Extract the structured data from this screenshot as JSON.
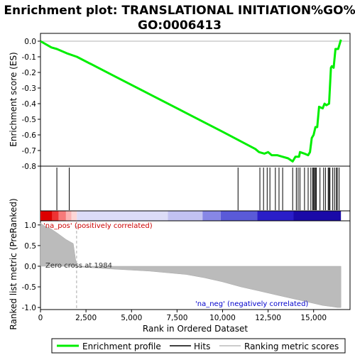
{
  "chart_data": {
    "type": "line",
    "title_line1": "Enrichment plot: TRANSLATIONAL INITIATION%GO%",
    "title_line2": "GO:0006413",
    "xlabel": "Rank in Ordered Dataset",
    "ylabel_top": "Enrichment score (ES)",
    "ylabel_bottom": "Ranked list metric (PreRanked)",
    "x_ticks": [
      0,
      2500,
      5000,
      7500,
      10000,
      12500,
      15000
    ],
    "x_tick_labels": [
      "0",
      "2,500",
      "5,000",
      "7,500",
      "10,000",
      "12,500",
      "15,000"
    ],
    "xlim": [
      0,
      17000
    ],
    "es_ylim": [
      -0.8,
      0.05
    ],
    "es_ticks": [
      0.0,
      -0.1,
      -0.2,
      -0.3,
      -0.4,
      -0.5,
      -0.6,
      -0.7,
      -0.8
    ],
    "es_tick_labels": [
      "0.0",
      "-0.1",
      "-0.2",
      "-0.3",
      "-0.4",
      "-0.5",
      "-0.6",
      "-0.7",
      "-0.8"
    ],
    "metric_ylim": [
      -1.05,
      1.1
    ],
    "metric_ticks": [
      1.0,
      0.5,
      0.0,
      -0.5,
      -1.0
    ],
    "metric_tick_labels": [
      "1.0",
      "0.5",
      "0.0",
      "-0.5",
      "-1.0"
    ],
    "es_curve": {
      "x": [
        0,
        600,
        900,
        1500,
        2000,
        4000,
        6000,
        8000,
        10000,
        11800,
        12000,
        12300,
        12500,
        12700,
        13000,
        13300,
        13600,
        13850,
        14000,
        14200,
        14250,
        14500,
        14700,
        14800,
        14900,
        15000,
        15100,
        15200,
        15300,
        15500,
        15600,
        15700,
        15850,
        15950,
        16000,
        16100,
        16200,
        16350,
        16500
      ],
      "y": [
        0.0,
        -0.04,
        -0.05,
        -0.08,
        -0.1,
        -0.22,
        -0.34,
        -0.46,
        -0.58,
        -0.69,
        -0.71,
        -0.72,
        -0.71,
        -0.73,
        -0.73,
        -0.74,
        -0.75,
        -0.77,
        -0.74,
        -0.74,
        -0.71,
        -0.72,
        -0.73,
        -0.71,
        -0.62,
        -0.6,
        -0.55,
        -0.55,
        -0.42,
        -0.43,
        -0.4,
        -0.41,
        -0.4,
        -0.17,
        -0.16,
        -0.17,
        -0.05,
        -0.05,
        0.01
      ]
    },
    "hits": [
      900,
      1580,
      10850,
      12050,
      12250,
      12450,
      12600,
      12900,
      13100,
      13300,
      13850,
      14050,
      14150,
      14250,
      14500,
      14700,
      14850,
      14950,
      15000,
      15050,
      15100,
      15150,
      15350,
      15550,
      15650,
      15800,
      15850,
      15900,
      16050,
      16150,
      16250,
      16300,
      16400
    ],
    "zero_cross": 1984,
    "zero_cross_label": "Zero cross at 1984",
    "pos_label": "'na_pos' (positively correlated)",
    "neg_label": "'na_neg' (negatively correlated)",
    "metric_curve": {
      "x": [
        0,
        200,
        600,
        1000,
        1400,
        1800,
        1984,
        2200,
        4000,
        6000,
        8000,
        9000,
        10000,
        11000,
        12000,
        13000,
        14000,
        15000,
        15500,
        16000,
        16300,
        16500
      ],
      "y": [
        1.05,
        0.98,
        0.9,
        0.78,
        0.65,
        0.55,
        0.0,
        -0.02,
        -0.07,
        -0.12,
        -0.2,
        -0.28,
        -0.38,
        -0.5,
        -0.6,
        -0.7,
        -0.8,
        -0.9,
        -0.95,
        -0.98,
        -1.0,
        -1.0
      ]
    },
    "legend": [
      "Enrichment profile",
      "Hits",
      "Ranking metric scores"
    ],
    "colors": {
      "es": "#00ee00",
      "hit": "#000000",
      "metric": "#bbbbbb",
      "pos_text": "#cc0000",
      "neg_text": "#0000cc",
      "zero": "#aaaaaa"
    }
  }
}
